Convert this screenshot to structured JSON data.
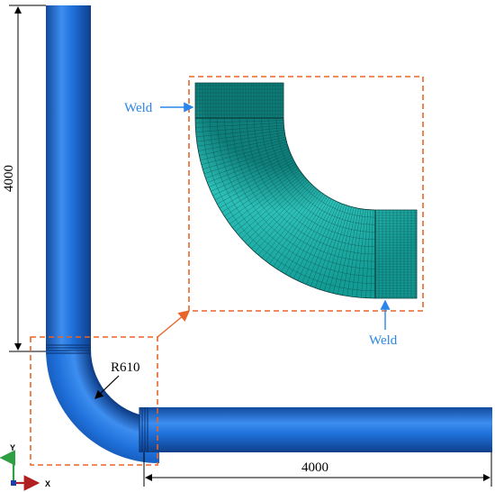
{
  "dimensions": {
    "vertical_length": "4000",
    "horizontal_length": "4000",
    "bend_radius": "R610"
  },
  "inset": {
    "weld_top_label": "Weld",
    "weld_bottom_label": "Weld"
  },
  "axis_triad": {
    "y_label": "Y",
    "x_label": "X"
  },
  "colors": {
    "pipe": "#1e6fd9",
    "pipe_dark": "#124a9e",
    "pipe_light": "#5aa0f0",
    "mesh": "#1aa7a1",
    "mesh_line": "#0b3b3a",
    "callout": "#e8652a",
    "arrow_blue": "#2a86e8",
    "dim_line": "#000000"
  }
}
